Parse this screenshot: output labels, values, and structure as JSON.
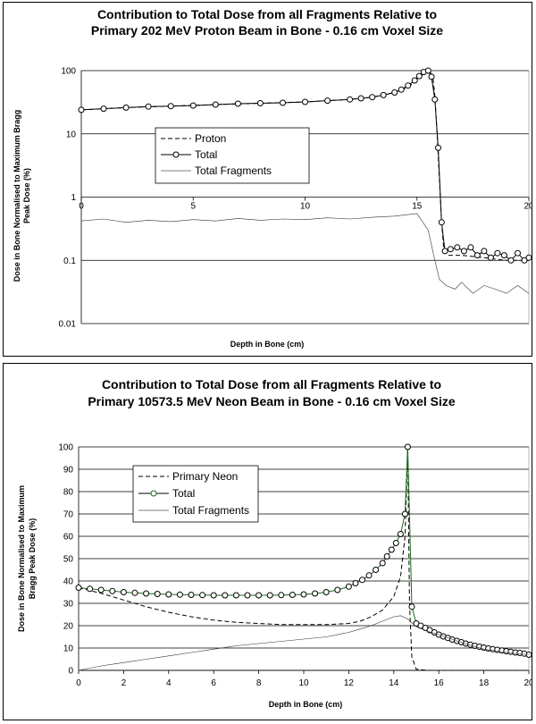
{
  "chart_data": [
    {
      "type": "line",
      "title": "Contribution to Total Dose from all Fragments Relative to Primary 202 MeV Proton Beam in Bone - 0.16 cm Voxel Size",
      "title_lines": [
        "Contribution to Total Dose from all Fragments Relative to",
        "Primary 202 MeV Proton Beam in Bone - 0.16 cm Voxel Size"
      ],
      "xlabel": "Depth in Bone (cm)",
      "ylabel": "Dose in Bone Normalised to Maximum Bragg Peak Dose (%)",
      "ylabel_lines": [
        "Dose in Bone Normalised to Maximum Bragg",
        "Peak Dose (%)"
      ],
      "xlim": [
        0,
        20
      ],
      "ylim": [
        0.01,
        100
      ],
      "yscale": "log",
      "xticks": [
        "0",
        "5",
        "10",
        "15",
        "20"
      ],
      "yticks": [
        "0.01",
        "0.1",
        "1",
        "10",
        "100"
      ],
      "grid": "horizontal",
      "legend_position": "center-left",
      "series": [
        {
          "name": "Proton",
          "style": "dashed",
          "x": [
            0,
            2,
            4,
            6,
            8,
            10,
            12,
            13,
            14,
            14.6,
            15,
            15.3,
            15.5,
            15.7,
            15.8,
            15.9,
            16.0,
            16.1,
            16.2,
            16.4,
            17,
            18,
            19,
            20
          ],
          "y": [
            24,
            26,
            27.5,
            29,
            30.5,
            32,
            35,
            38,
            45,
            55,
            70,
            90,
            100,
            85,
            40,
            10,
            2,
            0.4,
            0.15,
            0.12,
            0.12,
            0.11,
            0.1,
            0.1
          ]
        },
        {
          "name": "Total",
          "style": "line-circle",
          "x": [
            0,
            1,
            2,
            3,
            4,
            5,
            6,
            7,
            8,
            9,
            10,
            11,
            12,
            12.5,
            13,
            13.5,
            14,
            14.3,
            14.6,
            14.9,
            15.1,
            15.3,
            15.5,
            15.65,
            15.8,
            15.95,
            16.1,
            16.25,
            16.5,
            16.8,
            17.1,
            17.4,
            17.7,
            18.0,
            18.3,
            18.6,
            18.9,
            19.2,
            19.5,
            19.8,
            20
          ],
          "y": [
            24,
            25,
            26,
            27,
            27.5,
            28,
            29,
            30,
            30.5,
            31,
            32,
            33.5,
            35,
            36.5,
            38,
            41,
            45,
            50,
            58,
            70,
            82,
            95,
            100,
            80,
            35,
            6,
            0.4,
            0.14,
            0.15,
            0.16,
            0.14,
            0.16,
            0.12,
            0.14,
            0.11,
            0.13,
            0.12,
            0.1,
            0.13,
            0.1,
            0.11
          ]
        },
        {
          "name": "Total Fragments",
          "style": "solid-thin",
          "x": [
            0,
            1,
            2,
            3,
            4,
            5,
            6,
            7,
            8,
            9,
            10,
            11,
            12,
            13,
            14,
            15,
            15.5,
            15.8,
            16.0,
            16.3,
            16.7,
            17,
            17.5,
            18,
            18.5,
            19,
            19.5,
            20
          ],
          "y": [
            0.42,
            0.45,
            0.4,
            0.43,
            0.41,
            0.44,
            0.42,
            0.46,
            0.43,
            0.45,
            0.44,
            0.47,
            0.45,
            0.48,
            0.5,
            0.55,
            0.3,
            0.1,
            0.05,
            0.04,
            0.035,
            0.045,
            0.03,
            0.04,
            0.035,
            0.03,
            0.04,
            0.03
          ]
        }
      ]
    },
    {
      "type": "line",
      "title": "Contribution to Total Dose from all Fragments Relative to Primary 10573.5 MeV Neon Beam in Bone - 0.16 cm Voxel Size",
      "title_lines": [
        "Contribution to Total Dose from all Fragments Relative to",
        "Primary 10573.5 MeV Neon Beam in Bone - 0.16 cm Voxel Size"
      ],
      "xlabel": "Depth in Bone (cm)",
      "ylabel": "Dose in Bone Normalised to Maximum Bragg Peak Dose (%)",
      "ylabel_lines": [
        "Dose in Bone Normalised to Maximum",
        "Bragg Peak Dose (%)"
      ],
      "xlim": [
        0,
        20
      ],
      "ylim": [
        0,
        100
      ],
      "yscale": "linear",
      "xticks": [
        "0",
        "2",
        "4",
        "6",
        "8",
        "10",
        "12",
        "14",
        "16",
        "18",
        "20"
      ],
      "yticks": [
        "0",
        "10",
        "20",
        "30",
        "40",
        "50",
        "60",
        "70",
        "80",
        "90",
        "100"
      ],
      "grid": "horizontal",
      "legend_position": "top-left",
      "series": [
        {
          "name": "Primary Neon",
          "style": "dashed",
          "x": [
            0,
            1,
            2,
            3,
            4,
            5,
            6,
            7,
            8,
            9,
            10,
            11,
            12,
            12.5,
            13,
            13.5,
            14,
            14.3,
            14.5,
            14.62,
            14.7,
            14.8,
            15.0,
            15.5,
            16,
            18,
            20
          ],
          "y": [
            37,
            34.5,
            31.5,
            28.5,
            26,
            24,
            22.5,
            21.5,
            21,
            20.5,
            20.5,
            20.5,
            21,
            22,
            24,
            27,
            33,
            42,
            60,
            100,
            30,
            6,
            0.5,
            0,
            0,
            0,
            0
          ]
        },
        {
          "name": "Total",
          "style": "line-circle",
          "x": [
            0,
            0.5,
            1,
            1.5,
            2,
            2.5,
            3,
            3.5,
            4,
            4.5,
            5,
            5.5,
            6,
            6.5,
            7,
            7.5,
            8,
            8.5,
            9,
            9.5,
            10,
            10.5,
            11,
            11.5,
            12,
            12.3,
            12.6,
            12.9,
            13.2,
            13.5,
            13.7,
            13.9,
            14.1,
            14.3,
            14.5,
            14.62,
            14.8,
            15.0,
            15.2,
            15.4,
            15.6,
            15.8,
            16.0,
            16.2,
            16.4,
            16.6,
            16.8,
            17.0,
            17.2,
            17.4,
            17.6,
            17.8,
            18.0,
            18.2,
            18.4,
            18.6,
            18.8,
            19.0,
            19.2,
            19.4,
            19.6,
            19.8,
            20
          ],
          "y": [
            37,
            36.5,
            36,
            35.5,
            35,
            34.7,
            34.4,
            34.2,
            34,
            33.9,
            33.8,
            33.7,
            33.6,
            33.6,
            33.6,
            33.6,
            33.6,
            33.6,
            33.7,
            33.8,
            34,
            34.4,
            35,
            36,
            37.5,
            39,
            40.5,
            42.5,
            45,
            48,
            51,
            54,
            57,
            61,
            70,
            100,
            28.5,
            21,
            20,
            19,
            18,
            17,
            16,
            15.2,
            14.5,
            13.8,
            13.2,
            12.6,
            12,
            11.5,
            11,
            10.6,
            10.2,
            9.8,
            9.5,
            9.2,
            8.9,
            8.6,
            8.3,
            8,
            7.8,
            7.5,
            7
          ]
        },
        {
          "name": "Total Fragments",
          "style": "solid-thin",
          "x": [
            0,
            1,
            2,
            3,
            4,
            5,
            6,
            7,
            8,
            9,
            10,
            11,
            12,
            12.5,
            13,
            13.5,
            14,
            14.3,
            14.62,
            15,
            15.5,
            16,
            17,
            18,
            19,
            20
          ],
          "y": [
            0,
            2,
            3.5,
            5,
            6.5,
            8,
            9.5,
            11,
            12,
            13,
            14,
            15,
            17,
            18.5,
            20,
            22,
            24,
            24.5,
            23,
            19.5,
            17.5,
            16,
            12.5,
            9.5,
            8,
            7
          ]
        }
      ]
    }
  ]
}
